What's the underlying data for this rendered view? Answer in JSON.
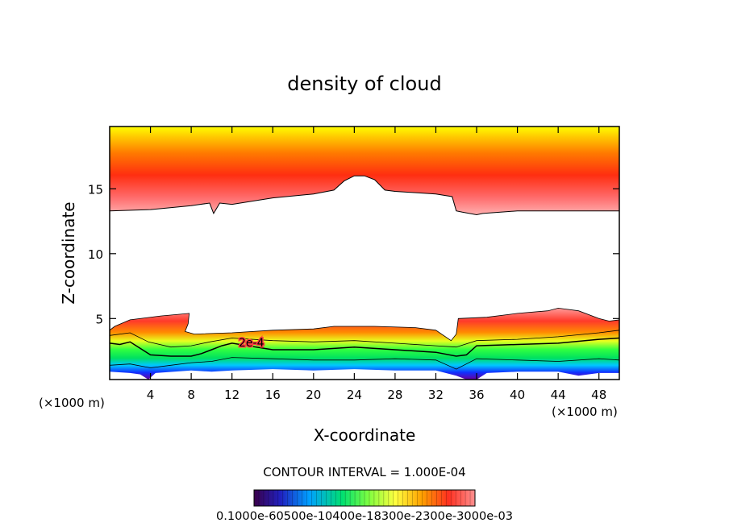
{
  "chart_data": {
    "type": "heatmap",
    "title": "density of cloud",
    "xlabel": "X-coordinate",
    "ylabel": "Z-coordinate",
    "x_unit_left": "(×1000 m)",
    "x_unit_right": "(×1000 m)",
    "xlim": [
      0,
      50
    ],
    "ylim": [
      0.3,
      19.8
    ],
    "x_ticks": [
      4,
      8,
      12,
      16,
      20,
      24,
      28,
      32,
      36,
      40,
      44,
      48
    ],
    "y_ticks": [
      5,
      10,
      15
    ],
    "x_tick_labels": [
      "4",
      "8",
      "12",
      "16",
      "20",
      "24",
      "28",
      "32",
      "36",
      "40",
      "44",
      "48"
    ],
    "y_tick_labels": [
      "5",
      "10",
      "15"
    ],
    "contour_interval_text": "CONTOUR INTERVAL = 1.000E-04",
    "contour_label": "2e-4",
    "colorbar_text": "0.1000e-60500e-10400e-18300e-2300e-3000e-03",
    "colorbar_range": [
      0.0,
      0.00035
    ],
    "upper_cloud": {
      "lower_boundary": [
        [
          0,
          13.3
        ],
        [
          4,
          13.4
        ],
        [
          8,
          13.7
        ],
        [
          9.8,
          13.9
        ],
        [
          10.2,
          13.1
        ],
        [
          10.8,
          13.9
        ],
        [
          12,
          13.8
        ],
        [
          16,
          14.3
        ],
        [
          20,
          14.6
        ],
        [
          22,
          14.9
        ],
        [
          23,
          15.6
        ],
        [
          24,
          16.0
        ],
        [
          25,
          16.0
        ],
        [
          26,
          15.7
        ],
        [
          27,
          14.9
        ],
        [
          28,
          14.8
        ],
        [
          32,
          14.6
        ],
        [
          33.6,
          14.4
        ],
        [
          34,
          13.3
        ],
        [
          34.6,
          13.2
        ],
        [
          36,
          13.0
        ],
        [
          36.6,
          13.1
        ],
        [
          40,
          13.3
        ],
        [
          44,
          13.3
        ],
        [
          50,
          13.3
        ]
      ],
      "top_z": 19.8
    },
    "lower_cloud": {
      "top_boundary": [
        [
          0,
          4.1
        ],
        [
          0.5,
          4.4
        ],
        [
          2,
          4.9
        ],
        [
          5,
          5.2
        ],
        [
          7.8,
          5.4
        ],
        [
          7.7,
          4.6
        ],
        [
          7.4,
          4.0
        ],
        [
          8.3,
          3.8
        ],
        [
          12,
          3.9
        ],
        [
          16,
          4.1
        ],
        [
          20,
          4.2
        ],
        [
          22,
          4.4
        ],
        [
          26,
          4.4
        ],
        [
          30,
          4.3
        ],
        [
          32,
          4.1
        ],
        [
          33.5,
          3.3
        ],
        [
          34,
          3.8
        ],
        [
          34.2,
          5.0
        ],
        [
          37,
          5.1
        ],
        [
          40,
          5.4
        ],
        [
          43,
          5.6
        ],
        [
          44,
          5.8
        ],
        [
          46,
          5.6
        ],
        [
          48,
          5.0
        ],
        [
          49,
          4.8
        ],
        [
          50,
          4.9
        ]
      ],
      "bottom_boundary": [
        [
          0,
          0.9
        ],
        [
          2,
          0.8
        ],
        [
          3,
          0.7
        ],
        [
          3.8,
          0.3
        ],
        [
          4.5,
          0.8
        ],
        [
          8,
          1.0
        ],
        [
          10,
          0.9
        ],
        [
          12,
          1.0
        ],
        [
          16,
          1.1
        ],
        [
          20,
          1.0
        ],
        [
          24,
          1.1
        ],
        [
          28,
          1.0
        ],
        [
          32,
          1.0
        ],
        [
          34,
          0.6
        ],
        [
          35,
          0.3
        ],
        [
          36,
          0.3
        ],
        [
          37,
          0.8
        ],
        [
          40,
          0.9
        ],
        [
          44,
          0.9
        ],
        [
          46,
          0.6
        ],
        [
          48,
          0.8
        ],
        [
          50,
          0.8
        ]
      ],
      "contour_2e4": [
        [
          0,
          3.1
        ],
        [
          1,
          3.0
        ],
        [
          2,
          3.2
        ],
        [
          4,
          2.2
        ],
        [
          6,
          2.1
        ],
        [
          8,
          2.1
        ],
        [
          9,
          2.3
        ],
        [
          10,
          2.6
        ],
        [
          11,
          2.9
        ],
        [
          12,
          3.1
        ],
        [
          16,
          2.6
        ],
        [
          20,
          2.6
        ],
        [
          24,
          2.8
        ],
        [
          28,
          2.6
        ],
        [
          32,
          2.4
        ],
        [
          34,
          2.1
        ],
        [
          35,
          2.2
        ],
        [
          36,
          2.9
        ],
        [
          40,
          3.0
        ],
        [
          44,
          3.1
        ],
        [
          48,
          3.4
        ],
        [
          50,
          3.5
        ]
      ],
      "contour_1e4": [
        [
          0,
          3.7
        ],
        [
          2,
          3.9
        ],
        [
          3.8,
          3.2
        ],
        [
          6,
          2.8
        ],
        [
          8,
          2.9
        ],
        [
          9.8,
          3.2
        ],
        [
          12,
          3.5
        ],
        [
          16,
          3.3
        ],
        [
          20,
          3.2
        ],
        [
          24,
          3.3
        ],
        [
          28,
          3.1
        ],
        [
          32,
          2.9
        ],
        [
          34,
          2.8
        ],
        [
          36,
          3.3
        ],
        [
          40,
          3.4
        ],
        [
          44,
          3.6
        ],
        [
          48,
          3.9
        ],
        [
          50,
          4.1
        ]
      ],
      "contour_3e4": [
        [
          0,
          1.4
        ],
        [
          2,
          1.5
        ],
        [
          4,
          1.2
        ],
        [
          6,
          1.4
        ],
        [
          8,
          1.6
        ],
        [
          10,
          1.7
        ],
        [
          12,
          2.0
        ],
        [
          16,
          1.9
        ],
        [
          20,
          1.8
        ],
        [
          24,
          1.8
        ],
        [
          28,
          1.9
        ],
        [
          32,
          1.8
        ],
        [
          34,
          1.1
        ],
        [
          36,
          1.9
        ],
        [
          40,
          1.8
        ],
        [
          44,
          1.7
        ],
        [
          48,
          1.9
        ],
        [
          50,
          1.8
        ]
      ]
    }
  }
}
